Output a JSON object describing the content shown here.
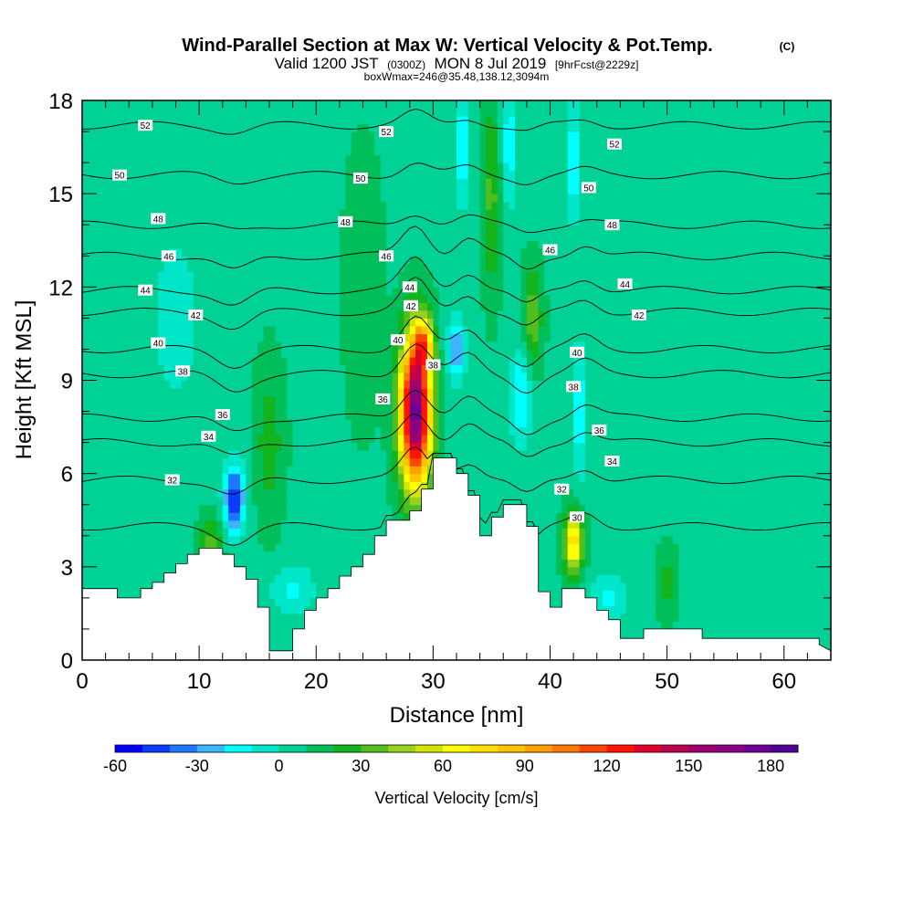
{
  "chart_data": {
    "type": "heatmap",
    "title": "Wind-Parallel Section at Max W: Vertical Velocity & Pot.Temp.",
    "title_mark": "(C)",
    "subtitle": {
      "part1": "Valid 1200 JST",
      "part2": "(0300Z)",
      "part3": "MON 8 Jul 2019",
      "part4": "[9hrFcst@2229z]"
    },
    "subtitle2": "boxWmax=246@35.48,138.12,3094m",
    "xlabel": "Distance [nm]",
    "ylabel": "Height [Kft MSL]",
    "xlim": [
      0,
      64
    ],
    "ylim": [
      0,
      18
    ],
    "xticks": [
      0,
      10,
      20,
      30,
      40,
      50,
      60
    ],
    "yticks": [
      0,
      3,
      6,
      9,
      12,
      15,
      18
    ],
    "colorbar": {
      "label": "Vertical Velocity [cm/s]",
      "ticks": [
        -60,
        -30,
        0,
        30,
        60,
        90,
        120,
        150,
        180
      ],
      "min": -60,
      "max": 190,
      "colors": [
        "#0000ff",
        "#0a3cff",
        "#1e78ff",
        "#3cb4ff",
        "#00ffff",
        "#00e6c8",
        "#00d296",
        "#00be5a",
        "#14b41e",
        "#50be1e",
        "#96d21e",
        "#d2e600",
        "#ffff00",
        "#ffe100",
        "#ffc300",
        "#ffa000",
        "#ff7800",
        "#ff4600",
        "#ff1400",
        "#e1002d",
        "#be0050",
        "#a0006e",
        "#8c0082",
        "#6e0096",
        "#500096"
      ]
    },
    "terrain": [
      [
        0,
        2.3
      ],
      [
        3,
        2.3
      ],
      [
        3,
        2.0
      ],
      [
        5,
        2.0
      ],
      [
        5,
        2.3
      ],
      [
        6,
        2.3
      ],
      [
        6,
        2.5
      ],
      [
        7,
        2.5
      ],
      [
        7,
        2.8
      ],
      [
        8,
        2.8
      ],
      [
        8,
        3.1
      ],
      [
        9,
        3.1
      ],
      [
        9,
        3.4
      ],
      [
        10,
        3.4
      ],
      [
        10,
        3.6
      ],
      [
        12,
        3.6
      ],
      [
        12,
        3.4
      ],
      [
        13,
        3.4
      ],
      [
        13,
        3.0
      ],
      [
        14,
        3.0
      ],
      [
        14,
        2.6
      ],
      [
        15,
        2.6
      ],
      [
        15,
        1.7
      ],
      [
        16,
        1.7
      ],
      [
        16,
        0.3
      ],
      [
        18,
        0.3
      ],
      [
        18,
        1.0
      ],
      [
        19,
        1.0
      ],
      [
        19,
        1.6
      ],
      [
        20,
        1.6
      ],
      [
        20,
        2.0
      ],
      [
        21,
        2.0
      ],
      [
        21,
        2.3
      ],
      [
        22,
        2.3
      ],
      [
        22,
        2.7
      ],
      [
        23,
        2.7
      ],
      [
        23,
        3.0
      ],
      [
        24,
        3.0
      ],
      [
        24,
        3.4
      ],
      [
        25,
        3.4
      ],
      [
        25,
        4.0
      ],
      [
        26,
        4.0
      ],
      [
        26,
        4.5
      ],
      [
        28,
        4.5
      ],
      [
        28,
        4.8
      ],
      [
        29,
        4.8
      ],
      [
        29,
        5.5
      ],
      [
        30,
        5.5
      ],
      [
        30,
        6.5
      ],
      [
        32,
        6.5
      ],
      [
        32,
        6.0
      ],
      [
        33,
        6.0
      ],
      [
        33,
        5.3
      ],
      [
        34,
        5.3
      ],
      [
        34,
        4.0
      ],
      [
        35,
        4.0
      ],
      [
        35,
        4.6
      ],
      [
        36,
        4.6
      ],
      [
        36,
        5.0
      ],
      [
        38,
        5.0
      ],
      [
        38,
        4.3
      ],
      [
        39,
        4.3
      ],
      [
        39,
        2.2
      ],
      [
        40,
        2.2
      ],
      [
        40,
        1.7
      ],
      [
        41,
        1.7
      ],
      [
        41,
        2.3
      ],
      [
        43,
        2.3
      ],
      [
        43,
        2.0
      ],
      [
        44,
        2.0
      ],
      [
        44,
        1.6
      ],
      [
        45,
        1.6
      ],
      [
        45,
        1.3
      ],
      [
        46,
        1.3
      ],
      [
        46,
        0.7
      ],
      [
        48,
        0.7
      ],
      [
        48,
        1.0
      ],
      [
        53,
        1.0
      ],
      [
        53,
        0.7
      ],
      [
        63,
        0.7
      ],
      [
        63,
        0.5
      ],
      [
        64,
        0.3
      ]
    ],
    "w_features": [
      {
        "x": 28.5,
        "y": 8.0,
        "sx": 1.3,
        "sy": 2.4,
        "value": 170
      },
      {
        "x": 29.2,
        "y": 10.2,
        "sx": 0.8,
        "sy": 0.8,
        "value": 60
      },
      {
        "x": 13.0,
        "y": 5.2,
        "sx": 0.9,
        "sy": 1.1,
        "value": -60
      },
      {
        "x": 32.0,
        "y": 10.0,
        "sx": 0.8,
        "sy": 1.0,
        "value": -40
      },
      {
        "x": 37.5,
        "y": 8.5,
        "sx": 0.9,
        "sy": 1.6,
        "value": -30
      },
      {
        "x": 42.5,
        "y": 8.0,
        "sx": 0.7,
        "sy": 2.2,
        "value": -25
      },
      {
        "x": 42.0,
        "y": 3.8,
        "sx": 0.8,
        "sy": 1.0,
        "value": 70
      },
      {
        "x": 38.5,
        "y": 11.0,
        "sx": 0.8,
        "sy": 1.6,
        "value": 30
      },
      {
        "x": 11.0,
        "y": 3.8,
        "sx": 1.0,
        "sy": 0.8,
        "value": 25
      },
      {
        "x": 16.0,
        "y": 7.0,
        "sx": 1.2,
        "sy": 2.5,
        "value": 18
      },
      {
        "x": 8.0,
        "y": 11.0,
        "sx": 2.0,
        "sy": 3.0,
        "value": -15
      },
      {
        "x": 18.0,
        "y": 2.3,
        "sx": 2.0,
        "sy": 0.8,
        "value": -20
      },
      {
        "x": 32.5,
        "y": 16.5,
        "sx": 0.7,
        "sy": 2.0,
        "value": -25
      },
      {
        "x": 36.5,
        "y": 16.5,
        "sx": 0.7,
        "sy": 2.0,
        "value": -25
      },
      {
        "x": 42.0,
        "y": 16.0,
        "sx": 0.7,
        "sy": 2.0,
        "value": -25
      },
      {
        "x": 35.0,
        "y": 15.0,
        "sx": 0.8,
        "sy": 3.0,
        "value": 25
      },
      {
        "x": 24.0,
        "y": 12.0,
        "sx": 1.5,
        "sy": 4.0,
        "value": 12
      },
      {
        "x": 45.0,
        "y": 2.0,
        "sx": 1.6,
        "sy": 0.8,
        "value": -20
      },
      {
        "x": 50.0,
        "y": 2.5,
        "sx": 0.8,
        "sy": 1.0,
        "value": 18
      }
    ],
    "theta_contours": [
      {
        "value": 30,
        "y0": 4.3
      },
      {
        "value": 32,
        "y0": 5.8
      },
      {
        "value": 34,
        "y0": 7.0
      },
      {
        "value": 36,
        "y0": 7.8
      },
      {
        "value": 38,
        "y0": 9.2
      },
      {
        "value": 40,
        "y0": 10.0
      },
      {
        "value": 42,
        "y0": 11.2
      },
      {
        "value": 44,
        "y0": 11.9
      },
      {
        "value": 46,
        "y0": 13.0
      },
      {
        "value": 48,
        "y0": 14.0
      },
      {
        "value": 50,
        "y0": 15.6
      },
      {
        "value": 52,
        "y0": 17.2
      }
    ],
    "contour_labels": [
      {
        "text": "52",
        "x": 5.4,
        "y": 17.2
      },
      {
        "text": "52",
        "x": 26.0,
        "y": 17.0
      },
      {
        "text": "52",
        "x": 45.5,
        "y": 16.6
      },
      {
        "text": "50",
        "x": 3.2,
        "y": 15.6
      },
      {
        "text": "50",
        "x": 23.8,
        "y": 15.5
      },
      {
        "text": "50",
        "x": 43.3,
        "y": 15.2
      },
      {
        "text": "48",
        "x": 6.5,
        "y": 14.2
      },
      {
        "text": "48",
        "x": 22.5,
        "y": 14.1
      },
      {
        "text": "48",
        "x": 45.3,
        "y": 14.0
      },
      {
        "text": "46",
        "x": 7.4,
        "y": 13.0
      },
      {
        "text": "46",
        "x": 26.0,
        "y": 13.0
      },
      {
        "text": "46",
        "x": 40.0,
        "y": 13.2
      },
      {
        "text": "44",
        "x": 5.4,
        "y": 11.9
      },
      {
        "text": "44",
        "x": 28.0,
        "y": 12.0
      },
      {
        "text": "44",
        "x": 46.4,
        "y": 12.1
      },
      {
        "text": "42",
        "x": 9.7,
        "y": 11.1
      },
      {
        "text": "42",
        "x": 28.1,
        "y": 11.4
      },
      {
        "text": "42",
        "x": 47.6,
        "y": 11.1
      },
      {
        "text": "40",
        "x": 6.5,
        "y": 10.2
      },
      {
        "text": "40",
        "x": 27.0,
        "y": 10.3
      },
      {
        "text": "40",
        "x": 42.3,
        "y": 9.9
      },
      {
        "text": "38",
        "x": 8.6,
        "y": 9.3
      },
      {
        "text": "38",
        "x": 30.0,
        "y": 9.5
      },
      {
        "text": "38",
        "x": 42.0,
        "y": 8.8
      },
      {
        "text": "36",
        "x": 12.0,
        "y": 7.9
      },
      {
        "text": "36",
        "x": 25.7,
        "y": 8.4
      },
      {
        "text": "36",
        "x": 44.2,
        "y": 7.4
      },
      {
        "text": "34",
        "x": 10.8,
        "y": 7.2
      },
      {
        "text": "34",
        "x": 45.3,
        "y": 6.4
      },
      {
        "text": "32",
        "x": 7.7,
        "y": 5.8
      },
      {
        "text": "32",
        "x": 41.0,
        "y": 5.5
      },
      {
        "text": "30",
        "x": 42.3,
        "y": 4.6
      }
    ]
  }
}
